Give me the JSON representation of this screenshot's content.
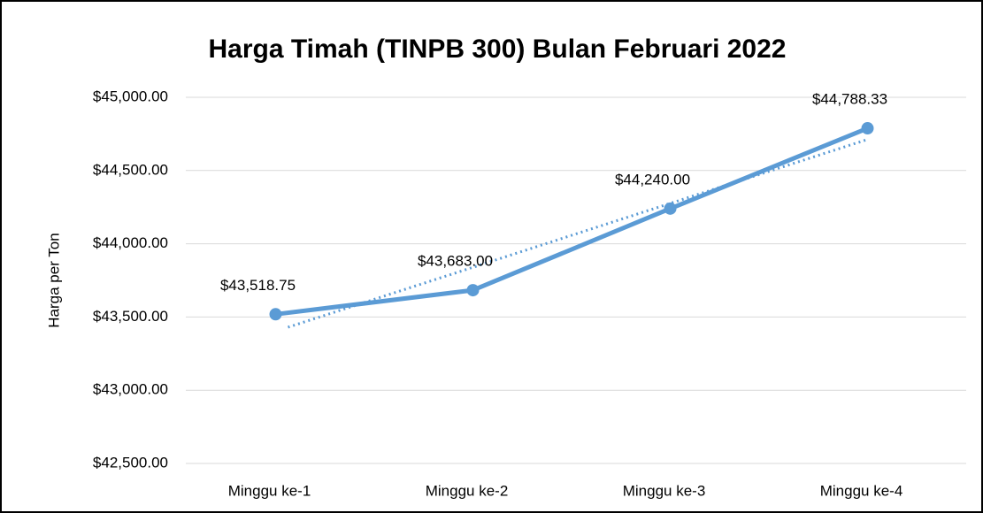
{
  "chart_data": {
    "type": "line",
    "title": "Harga Timah (TINPB 300) Bulan Februari 2022",
    "y_label": "Harga per Ton",
    "categories": [
      "Minggu ke-1",
      "Minggu ke-2",
      "Minggu ke-3",
      "Minggu ke-4"
    ],
    "values": [
      43518.75,
      43683,
      44240,
      44788.33
    ],
    "value_labels": [
      "$43,518.75",
      "$43,683.00",
      "$44,240.00",
      "$44,788.33"
    ],
    "color": "#5b9bd5",
    "trendline": "linear",
    "ylim": [
      42500,
      45000
    ],
    "yticks": [
      {
        "value": 42500,
        "label": "$42,500.00"
      },
      {
        "value": 43000,
        "label": "$43,000.00"
      },
      {
        "value": 43500,
        "label": "$43,500.00"
      },
      {
        "value": 44000,
        "label": "$44,000.00"
      },
      {
        "value": 44500,
        "label": "$44,500.00"
      },
      {
        "value": 45000,
        "label": "$45,000.00"
      }
    ],
    "grid": true
  }
}
